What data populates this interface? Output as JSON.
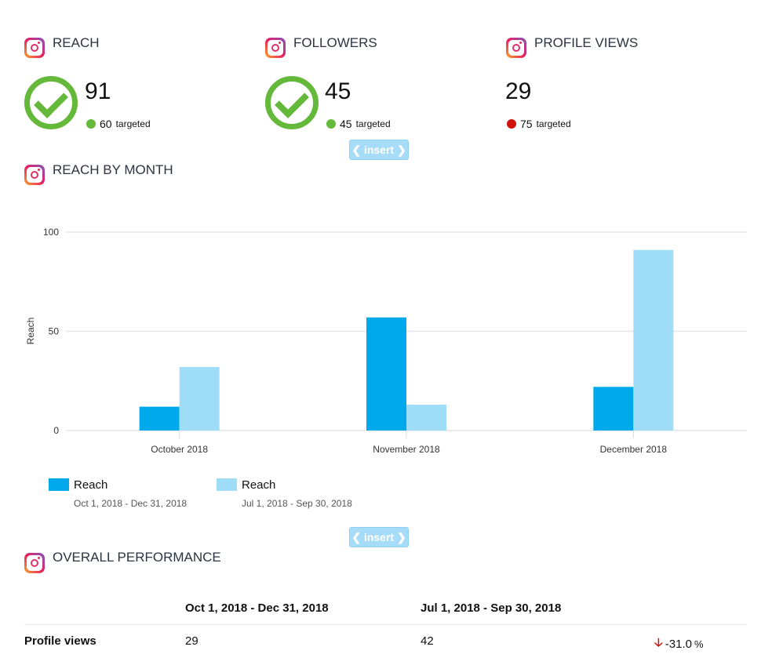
{
  "kpis": [
    {
      "title": "REACH",
      "value": "91",
      "target": "60",
      "target_label": "targeted",
      "status": "met",
      "dot_color": "#64b83a"
    },
    {
      "title": "FOLLOWERS",
      "value": "45",
      "target": "45",
      "target_label": "targeted",
      "status": "met",
      "dot_color": "#64b83a"
    },
    {
      "title": "PROFILE VIEWS",
      "value": "29",
      "target": "75",
      "target_label": "targeted",
      "status": "missed",
      "dot_color": "#d0140d"
    }
  ],
  "insert_label": "❮ insert ❯",
  "reach_chart": {
    "title": "REACH BY MONTH"
  },
  "chart_data": {
    "type": "bar",
    "categories": [
      "October 2018",
      "November 2018",
      "December 2018"
    ],
    "series": [
      {
        "name": "Reach",
        "period": "Oct 1, 2018 - Dec 31, 2018",
        "color": "#00a9ec",
        "values": [
          12,
          57,
          22
        ]
      },
      {
        "name": "Reach",
        "period": "Jul 1, 2018 - Sep 30, 2018",
        "color": "#9fdcf7",
        "values": [
          32,
          13,
          91
        ]
      }
    ],
    "ylabel": "Reach",
    "ylim": [
      0,
      100
    ],
    "yticks": [
      "0",
      "50",
      "100"
    ],
    "grid": true,
    "legend": "bottom-left"
  },
  "performance": {
    "title": "OVERALL PERFORMANCE",
    "columns": [
      "Oct 1, 2018 - Dec 31, 2018",
      "Jul 1, 2018 - Sep 30, 2018"
    ],
    "rows": [
      {
        "label": "Profile views",
        "current": "29",
        "previous": "42",
        "change": "-31.0",
        "change_unit": "%",
        "trend": "down",
        "trend_color": "#d0140d"
      }
    ]
  }
}
